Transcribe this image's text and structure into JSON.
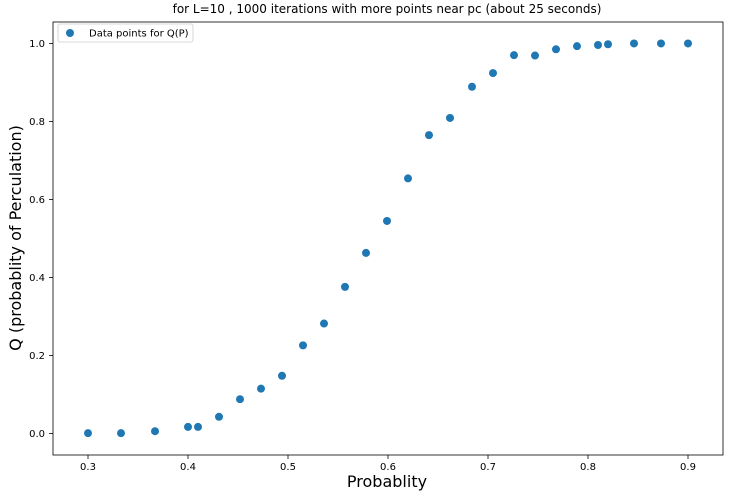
{
  "chart_data": {
    "type": "scatter",
    "title": "for L=10 , 1000 iterations with more points near pc (about 25 seconds)",
    "xlabel": "Probablity",
    "ylabel": "Q (probablity of Perculation)",
    "xlim": [
      0.265,
      0.935
    ],
    "ylim": [
      -0.055,
      1.055
    ],
    "xticks": [
      0.3,
      0.4,
      0.5,
      0.6,
      0.7,
      0.8,
      0.9
    ],
    "xtick_labels": [
      "0.3",
      "0.4",
      "0.5",
      "0.6",
      "0.7",
      "0.8",
      "0.9"
    ],
    "yticks": [
      0.0,
      0.2,
      0.4,
      0.6,
      0.8,
      1.0
    ],
    "ytick_labels": [
      "0.0",
      "0.2",
      "0.4",
      "0.6",
      "0.8",
      "1.0"
    ],
    "grid": false,
    "legend_position": "top-left",
    "series": [
      {
        "name": "Data points for Q(P)",
        "color": "#1f77b4",
        "x": [
          0.3,
          0.333,
          0.367,
          0.4,
          0.41,
          0.431,
          0.452,
          0.473,
          0.494,
          0.515,
          0.536,
          0.557,
          0.578,
          0.599,
          0.62,
          0.641,
          0.662,
          0.684,
          0.705,
          0.726,
          0.747,
          0.768,
          0.789,
          0.81,
          0.82,
          0.846,
          0.873,
          0.9
        ],
        "y": [
          0.001,
          0.001,
          0.006,
          0.017,
          0.017,
          0.043,
          0.088,
          0.115,
          0.148,
          0.226,
          0.282,
          0.376,
          0.463,
          0.545,
          0.654,
          0.765,
          0.809,
          0.889,
          0.924,
          0.97,
          0.969,
          0.985,
          0.993,
          0.996,
          0.998,
          1.0,
          1.0,
          1.0
        ]
      }
    ]
  }
}
